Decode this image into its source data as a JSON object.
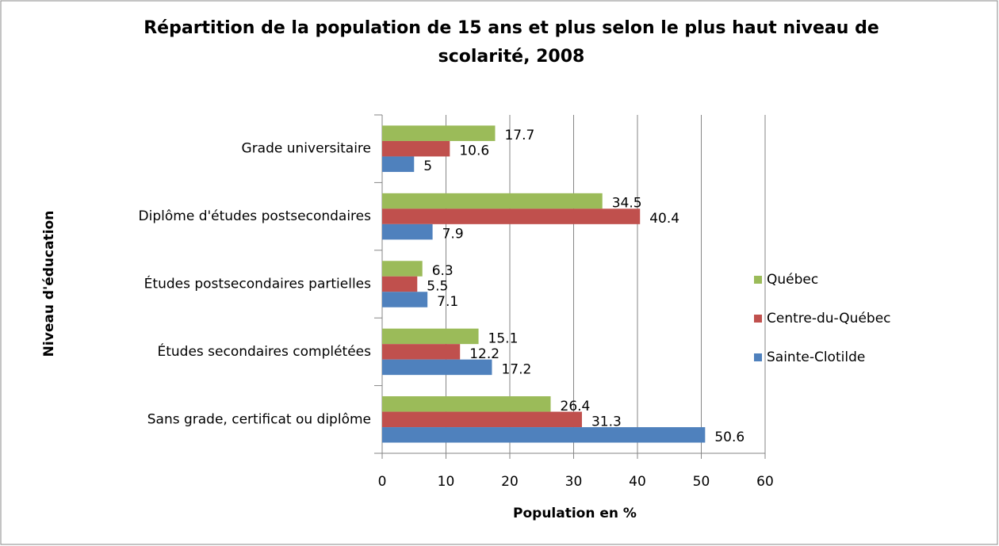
{
  "chart_data": {
    "type": "barh",
    "title": "Répartition de la population de 15 ans et plus selon le plus haut niveau de scolarité, 2008",
    "x_label": "Population en %",
    "y_label": "Niveau d'éducation",
    "categories": [
      "Grade universitaire",
      "Diplôme d'études postsecondaires",
      "Études postsecondaires partielles",
      "Études secondaires complétées",
      "Sans grade, certificat ou diplôme"
    ],
    "series": [
      {
        "name": "Québec",
        "color": "#9bbb59",
        "values": [
          17.7,
          34.5,
          6.3,
          15.1,
          26.4
        ]
      },
      {
        "name": "Centre-du-Québec",
        "color": "#c0504d",
        "values": [
          10.6,
          40.4,
          5.5,
          12.2,
          31.3
        ]
      },
      {
        "name": "Sainte-Clotilde",
        "color": "#4f81bd",
        "values": [
          5,
          7.9,
          7.1,
          17.2,
          50.6
        ]
      }
    ],
    "xlim": [
      0,
      60
    ],
    "xticks": [
      0,
      10,
      20,
      30,
      40,
      50,
      60
    ],
    "grid": true,
    "legend": "right"
  }
}
